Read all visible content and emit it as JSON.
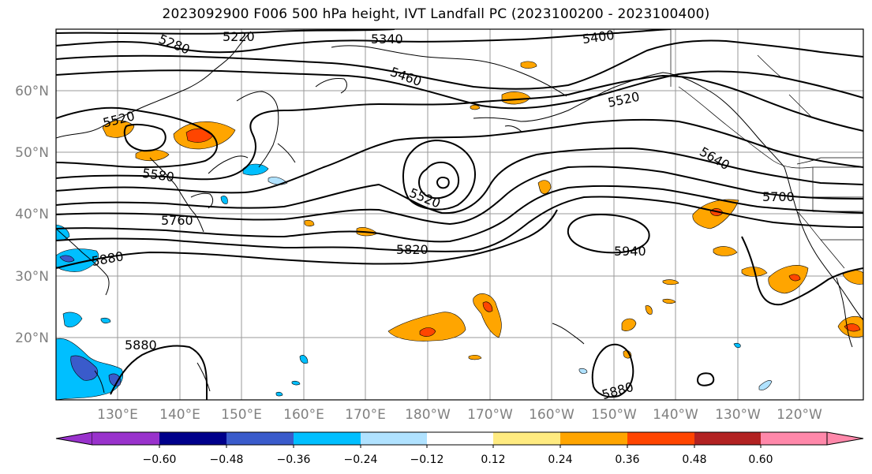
{
  "title": "2023092900 F006 500 hPa height, IVT Landfall PC (2023100200 - 2023100400)",
  "lon_labels": [
    "130°E",
    "140°E",
    "150°E",
    "160°E",
    "170°E",
    "180°W",
    "170°W",
    "160°W",
    "150°W",
    "140°W",
    "130°W",
    "120°W"
  ],
  "lat_labels": [
    "60°N",
    "50°N",
    "40°N",
    "30°N",
    "20°N"
  ],
  "contour_labels": [
    "5280",
    "5220",
    "5340",
    "5400",
    "5460",
    "5520",
    "5520",
    "5520",
    "5580",
    "5640",
    "5700",
    "5760",
    "5820",
    "5880",
    "5940",
    "5880",
    "5880"
  ],
  "colorbar": {
    "tick_labels": [
      "−0.60",
      "−0.48",
      "−0.36",
      "−0.24",
      "−0.12",
      "0.12",
      "0.24",
      "0.36",
      "0.48",
      "0.60"
    ],
    "colors": [
      "#9932CC",
      "#00008B",
      "#3A5BCB",
      "#00BFFF",
      "#B0E2FF",
      "#FFFFFF",
      "#FFEB80",
      "#FFA500",
      "#FF4500",
      "#B22222",
      "#FF88AA"
    ]
  },
  "colors": {
    "contour": "#000000",
    "grid": "#9a9a9a",
    "axis_text": "#808080"
  }
}
